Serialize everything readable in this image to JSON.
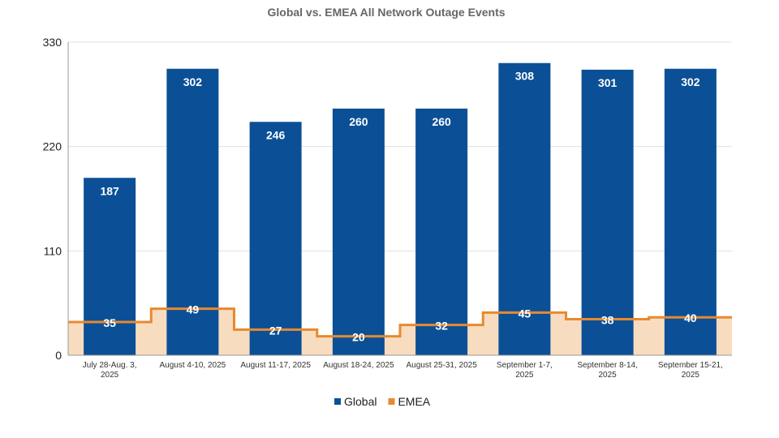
{
  "chart_data": {
    "type": "bar",
    "title": "Global vs. EMEA All Network Outage Events",
    "xlabel": "",
    "ylabel": "",
    "ylim": [
      0,
      330
    ],
    "yticks": [
      "0",
      "110",
      "220",
      "330"
    ],
    "grid": true,
    "legend_position": "bottom",
    "categories": [
      [
        "July 28-Aug. 3,",
        "2025"
      ],
      [
        "August 4-10, 2025"
      ],
      [
        "August 11-17, 2025"
      ],
      [
        "August 18-24, 2025"
      ],
      [
        "August 25-31, 2025"
      ],
      [
        "September 1-7,",
        "2025"
      ],
      [
        "September 8-14,",
        "2025"
      ],
      [
        "September 15-21,",
        "2025"
      ]
    ],
    "series": [
      {
        "name": "Global",
        "type": "bar",
        "color": "#0b5096",
        "values": [
          187,
          302,
          246,
          260,
          260,
          308,
          301,
          302
        ]
      },
      {
        "name": "EMEA",
        "type": "stepped-area",
        "color": "#e8892f",
        "fill": "#f8dcbf",
        "values": [
          35,
          49,
          27,
          20,
          32,
          45,
          38,
          40
        ]
      }
    ]
  }
}
